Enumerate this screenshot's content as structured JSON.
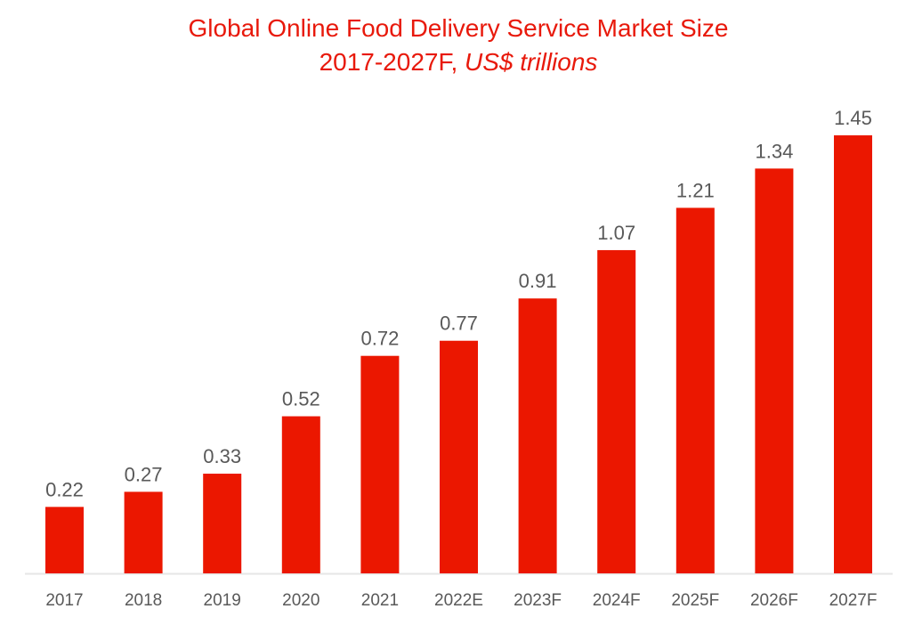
{
  "chart_data": {
    "type": "bar",
    "title": "Global Online Food Delivery Service Market Size",
    "subtitle_plain": "2017-2027F,",
    "subtitle_italic": "US$ trillions",
    "categories": [
      "2017",
      "2018",
      "2019",
      "2020",
      "2021",
      "2022E",
      "2023F",
      "2024F",
      "2025F",
      "2026F",
      "2027F"
    ],
    "values": [
      0.22,
      0.27,
      0.33,
      0.52,
      0.72,
      0.77,
      0.91,
      1.07,
      1.21,
      1.34,
      1.45
    ],
    "xlabel": "",
    "ylabel": "",
    "ylim": [
      0,
      1.45
    ],
    "grid": false,
    "data_labels": true,
    "colors": {
      "bar": "#EB1700",
      "title": "#E8190B",
      "text": "#595959",
      "axis": "#E6E6E6"
    }
  }
}
